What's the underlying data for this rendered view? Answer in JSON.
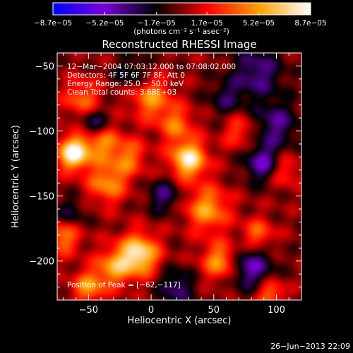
{
  "chart_data": {
    "type": "heatmap",
    "title": "Reconstructed RHESSI Image",
    "xlabel": "Heliocentric X (arcsec)",
    "ylabel": "Heliocentric Y (arcsec)",
    "xlim": [
      -75,
      120
    ],
    "ylim": [
      -230,
      -40
    ],
    "xticks": [
      -50,
      0,
      50,
      100
    ],
    "yticks": [
      -50,
      -100,
      -150,
      -200
    ],
    "xtick_labels": [
      "−50",
      "0",
      "50",
      "100"
    ],
    "ytick_labels": [
      "−50",
      "−100",
      "−150",
      "−200"
    ],
    "colorbar": {
      "min": -8.7e-05,
      "max": 8.7e-05,
      "tick_values": [
        -8.7e-05,
        -5.2e-05,
        -1.7e-05,
        1.7e-05,
        5.2e-05,
        8.7e-05
      ],
      "tick_labels": [
        "−8.7e−05",
        "−5.2e−05",
        "−1.7e−05",
        "1.7e−05",
        "5.2e−05",
        "8.7e−05"
      ],
      "unit_label": "(photons cm⁻² s⁻¹ asec⁻²)",
      "colors": [
        "#0000ff",
        "#7a00d8",
        "#000000",
        "#ff0000",
        "#ffa000",
        "#ffffff"
      ]
    },
    "annotations": {
      "time": "12−Mar−2004 07:03:12.000 to 07:08:02.000",
      "detectors": "Detectors: 4F 5F 6F 7F 8F, Att 0",
      "energy": "Energy Range: 25.0 − 50.0 keV",
      "clean": "Clean    Total counts: 3.68E+03",
      "peak": "Position of Peak = [−62,−117]"
    },
    "sources": [
      {
        "x": -62,
        "y": -117,
        "amp": 1.0,
        "sigma": 9
      },
      {
        "x": -40,
        "y": -108,
        "amp": 0.55,
        "sigma": 10
      },
      {
        "x": -35,
        "y": -140,
        "amp": 0.55,
        "sigma": 11
      },
      {
        "x": -18,
        "y": -120,
        "amp": 0.45,
        "sigma": 10
      },
      {
        "x": -10,
        "y": -195,
        "amp": 0.9,
        "sigma": 11
      },
      {
        "x": -30,
        "y": -205,
        "amp": 0.55,
        "sigma": 10
      },
      {
        "x": 30,
        "y": -122,
        "amp": 0.9,
        "sigma": 10
      },
      {
        "x": 45,
        "y": -160,
        "amp": 0.6,
        "sigma": 12
      },
      {
        "x": 0,
        "y": -75,
        "amp": 0.55,
        "sigma": 11
      },
      {
        "x": 20,
        "y": -95,
        "amp": 0.45,
        "sigma": 10
      },
      {
        "x": -55,
        "y": -75,
        "amp": 0.45,
        "sigma": 10
      },
      {
        "x": -70,
        "y": -180,
        "amp": 0.55,
        "sigma": 10
      },
      {
        "x": -50,
        "y": -220,
        "amp": 0.55,
        "sigma": 9
      },
      {
        "x": 55,
        "y": -200,
        "amp": 0.6,
        "sigma": 10
      },
      {
        "x": 85,
        "y": -180,
        "amp": 0.45,
        "sigma": 9
      },
      {
        "x": 105,
        "y": -130,
        "amp": 0.4,
        "sigma": 9
      },
      {
        "x": 95,
        "y": -225,
        "amp": 0.5,
        "sigma": 8
      },
      {
        "x": 70,
        "y": -100,
        "amp": 0.35,
        "sigma": 9
      },
      {
        "x": 85,
        "y": -55,
        "amp": -0.45,
        "sigma": 14
      },
      {
        "x": 100,
        "y": -95,
        "amp": -0.45,
        "sigma": 12
      },
      {
        "x": 90,
        "y": -125,
        "amp": -0.6,
        "sigma": 10
      },
      {
        "x": 80,
        "y": -205,
        "amp": -0.55,
        "sigma": 12
      },
      {
        "x": -45,
        "y": -95,
        "amp": -0.5,
        "sigma": 8
      },
      {
        "x": -65,
        "y": -165,
        "amp": -0.35,
        "sigma": 9
      },
      {
        "x": 10,
        "y": -150,
        "amp": -0.4,
        "sigma": 9
      },
      {
        "x": 20,
        "y": -220,
        "amp": -0.4,
        "sigma": 10
      },
      {
        "x": 60,
        "y": -75,
        "amp": -0.3,
        "sigma": 10
      },
      {
        "x": -15,
        "y": -55,
        "amp": -0.3,
        "sigma": 9
      }
    ]
  },
  "footer": {
    "date": "26−Jun−2013 22:09"
  }
}
